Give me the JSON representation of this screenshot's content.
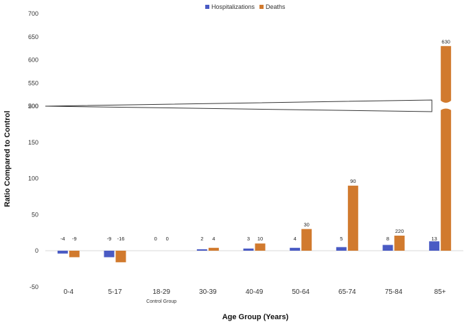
{
  "chart_data": {
    "type": "bar",
    "categories": [
      "0-4",
      "5-17",
      "18-29",
      "30-39",
      "40-49",
      "50-64",
      "65-74",
      "75-84",
      "85+"
    ],
    "category_sublabels": {
      "18-29": "Control Group"
    },
    "series": [
      {
        "name": "Hospitalizations",
        "color": "#4a5bc4",
        "values": [
          -4,
          -9,
          0,
          2,
          3,
          4,
          5,
          8,
          13
        ]
      },
      {
        "name": "Deaths",
        "color": "#d17a2e",
        "values": [
          -9,
          -16,
          0,
          4,
          10,
          30,
          90,
          220,
          630
        ]
      }
    ],
    "data_labels": {
      "Hospitalizations": [
        "-4",
        "-9",
        "0",
        "2",
        "3",
        "4",
        "5",
        "8",
        "13"
      ],
      "Deaths": [
        "-9",
        "-16",
        "0",
        "4",
        "10",
        "30",
        "90",
        "220",
        "630"
      ]
    },
    "xlabel": "Age Group (Years)",
    "ylabel": "Ratio Compared to Control",
    "ylim": [
      -50,
      700
    ],
    "axis_break": {
      "from": 200,
      "to": 500
    },
    "yticks_lower": [
      -50,
      0,
      50,
      100,
      150,
      200
    ],
    "yticks_upper": [
      500,
      550,
      600,
      650,
      700
    ],
    "legend_position": "top",
    "grid": false
  }
}
